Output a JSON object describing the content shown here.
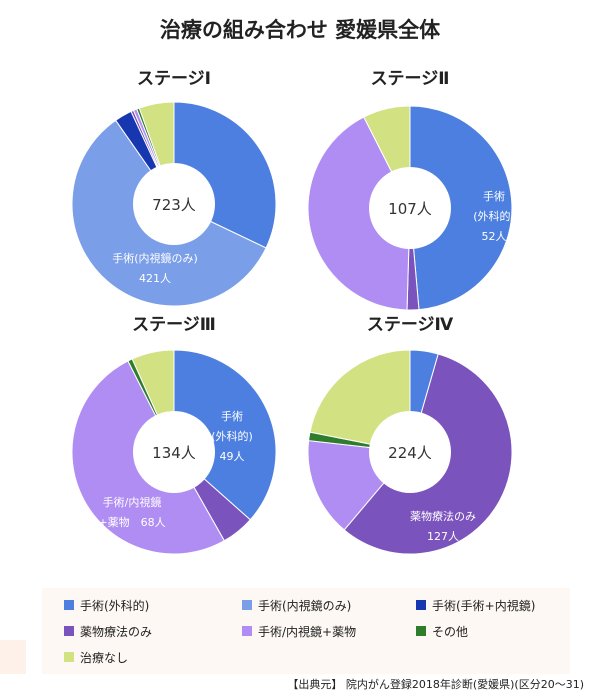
{
  "title": "治療の組み合わせ 愛媛県全体",
  "source": "【出典元】 院内がん登録2018年診断(愛媛県)(区分20～31)",
  "legend": [
    {
      "label": "手術(外科的)",
      "color": "#4d7fe0"
    },
    {
      "label": "手術(内視鏡のみ)",
      "color": "#7a9ee8"
    },
    {
      "label": "手術(手術+内視鏡)",
      "color": "#1737b0"
    },
    {
      "label": "薬物療法のみ",
      "color": "#7b53bd"
    },
    {
      "label": "手術/内視鏡+薬物",
      "color": "#b08df2"
    },
    {
      "label": "その他",
      "color": "#2f7d2c"
    },
    {
      "label": "治療なし",
      "color": "#d2e282"
    }
  ],
  "chart_data": [
    {
      "type": "pie",
      "title": "ステージⅠ",
      "total_label": "723人",
      "total": 723,
      "categories": [
        "手術(外科的)",
        "手術(内視鏡のみ)",
        "手術(手術+内視鏡)",
        "薬物療法のみ",
        "手術/内視鏡+薬物",
        "その他",
        "治療なし"
      ],
      "values": [
        232,
        421,
        20,
        3,
        4,
        3,
        40
      ],
      "data_labels": [
        {
          "category": "手術(内視鏡のみ)",
          "lines": [
            "手術(内視鏡のみ)",
            "421人"
          ]
        }
      ]
    },
    {
      "type": "pie",
      "title": "ステージⅡ",
      "total_label": "107人",
      "total": 107,
      "categories": [
        "手術(外科的)",
        "手術(内視鏡のみ)",
        "手術(手術+内視鏡)",
        "薬物療法のみ",
        "手術/内視鏡+薬物",
        "その他",
        "治療なし"
      ],
      "values": [
        52,
        0,
        0,
        2,
        45,
        0,
        8
      ],
      "data_labels": [
        {
          "category": "手術(外科的)",
          "lines": [
            "手術",
            "(外科的)",
            "52人"
          ]
        }
      ]
    },
    {
      "type": "pie",
      "title": "ステージⅢ",
      "total_label": "134人",
      "total": 134,
      "categories": [
        "手術(外科的)",
        "手術(内視鏡のみ)",
        "手術(手術+内視鏡)",
        "薬物療法のみ",
        "手術/内視鏡+薬物",
        "その他",
        "治療なし"
      ],
      "values": [
        49,
        0,
        0,
        7,
        68,
        1,
        9
      ],
      "data_labels": [
        {
          "category": "手術(外科的)",
          "lines": [
            "手術",
            "(外科的)",
            "49人"
          ]
        },
        {
          "category": "手術/内視鏡+薬物",
          "lines": [
            "手術/内視鏡",
            "+薬物　68人"
          ]
        }
      ]
    },
    {
      "type": "pie",
      "title": "ステージⅣ",
      "total_label": "224人",
      "total": 224,
      "categories": [
        "手術(外科的)",
        "手術(内視鏡のみ)",
        "手術(手術+内視鏡)",
        "薬物療法のみ",
        "手術/内視鏡+薬物",
        "その他",
        "治療なし"
      ],
      "values": [
        10,
        0,
        0,
        127,
        35,
        3,
        49
      ],
      "data_labels": [
        {
          "category": "薬物療法のみ",
          "lines": [
            "薬物療法のみ",
            "127人"
          ]
        }
      ]
    }
  ]
}
